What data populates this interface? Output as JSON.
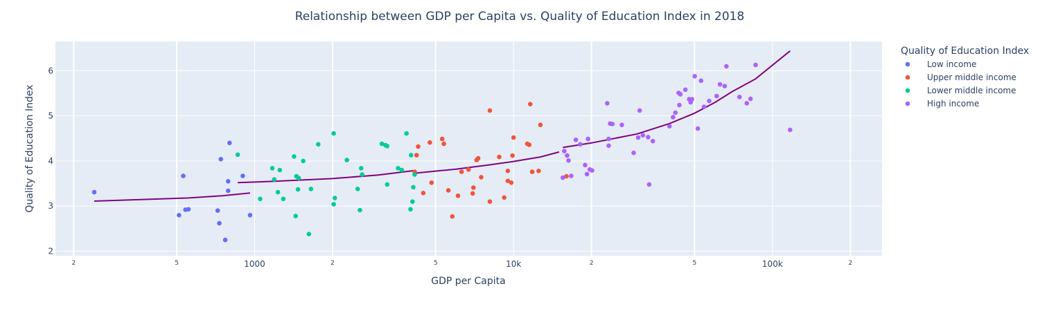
{
  "chart_data": {
    "type": "scatter",
    "title": "Relationship between GDP per Capita vs. Quality of Education Index in 2018",
    "xlabel": "GDP per Capita",
    "ylabel": "Quality of Education Index",
    "xscale": "log",
    "xlim": [
      170,
      265000
    ],
    "ylim": [
      1.9,
      6.65
    ],
    "grid": true,
    "legend_title": "Quality of Education Index",
    "legend_position": "right",
    "x_ticks_major": [
      {
        "value": 1000,
        "label": "1000"
      },
      {
        "value": 10000,
        "label": "10k"
      },
      {
        "value": 100000,
        "label": "100k"
      }
    ],
    "x_ticks_minor": [
      {
        "value": 200,
        "label": "2"
      },
      {
        "value": 500,
        "label": "5"
      },
      {
        "value": 2000,
        "label": "2"
      },
      {
        "value": 5000,
        "label": "5"
      },
      {
        "value": 20000,
        "label": "2"
      },
      {
        "value": 50000,
        "label": "5"
      },
      {
        "value": 200000,
        "label": "2"
      }
    ],
    "y_ticks": [
      {
        "value": 2,
        "label": "2"
      },
      {
        "value": 3,
        "label": "3"
      },
      {
        "value": 4,
        "label": "4"
      },
      {
        "value": 5,
        "label": "5"
      },
      {
        "value": 6,
        "label": "6"
      }
    ],
    "series": [
      {
        "name": "Low income",
        "color": "#636efa",
        "points": [
          [
            240,
            3.31
          ],
          [
            510,
            2.8
          ],
          [
            530,
            3.67
          ],
          [
            540,
            2.92
          ],
          [
            555,
            2.93
          ],
          [
            720,
            2.9
          ],
          [
            730,
            2.62
          ],
          [
            740,
            4.04
          ],
          [
            770,
            2.25
          ],
          [
            790,
            3.55
          ],
          [
            790,
            3.34
          ],
          [
            800,
            4.4
          ],
          [
            900,
            3.67
          ],
          [
            960,
            2.8
          ]
        ]
      },
      {
        "name": "Upper middle income",
        "color": "#ef553b",
        "points": [
          [
            4150,
            3.76
          ],
          [
            4220,
            4.13
          ],
          [
            4280,
            4.32
          ],
          [
            4480,
            3.29
          ],
          [
            4750,
            4.41
          ],
          [
            4820,
            3.52
          ],
          [
            5300,
            4.49
          ],
          [
            5380,
            4.38
          ],
          [
            5600,
            3.35
          ],
          [
            5800,
            2.77
          ],
          [
            6100,
            3.23
          ],
          [
            6300,
            3.76
          ],
          [
            6700,
            3.81
          ],
          [
            6950,
            3.28
          ],
          [
            7000,
            3.41
          ],
          [
            7200,
            4.02
          ],
          [
            7300,
            4.06
          ],
          [
            7500,
            3.64
          ],
          [
            8100,
            5.12
          ],
          [
            8100,
            3.1
          ],
          [
            8800,
            4.09
          ],
          [
            9200,
            3.19
          ],
          [
            9500,
            3.78
          ],
          [
            9500,
            3.56
          ],
          [
            9800,
            3.52
          ],
          [
            9900,
            4.12
          ],
          [
            10000,
            4.52
          ],
          [
            11300,
            4.38
          ],
          [
            11500,
            4.36
          ],
          [
            11600,
            5.26
          ],
          [
            11800,
            3.76
          ],
          [
            12500,
            3.78
          ],
          [
            12700,
            4.8
          ],
          [
            16000,
            3.66
          ]
        ]
      },
      {
        "name": "Lower middle income",
        "color": "#00cc96",
        "points": [
          [
            860,
            4.14
          ],
          [
            1050,
            3.16
          ],
          [
            1170,
            3.84
          ],
          [
            1190,
            3.59
          ],
          [
            1230,
            3.31
          ],
          [
            1250,
            3.8
          ],
          [
            1290,
            3.16
          ],
          [
            1420,
            4.1
          ],
          [
            1440,
            2.78
          ],
          [
            1450,
            3.66
          ],
          [
            1470,
            3.37
          ],
          [
            1480,
            3.62
          ],
          [
            1540,
            4.0
          ],
          [
            1620,
            2.38
          ],
          [
            1650,
            3.38
          ],
          [
            1760,
            4.37
          ],
          [
            2020,
            3.04
          ],
          [
            2020,
            4.61
          ],
          [
            2040,
            3.18
          ],
          [
            2270,
            4.02
          ],
          [
            2500,
            3.38
          ],
          [
            2550,
            2.91
          ],
          [
            2580,
            3.84
          ],
          [
            2600,
            3.7
          ],
          [
            3100,
            4.38
          ],
          [
            3200,
            4.35
          ],
          [
            3250,
            4.33
          ],
          [
            3250,
            3.48
          ],
          [
            3580,
            3.84
          ],
          [
            3700,
            3.8
          ],
          [
            3860,
            4.61
          ],
          [
            4000,
            2.93
          ],
          [
            4020,
            4.13
          ],
          [
            4070,
            3.1
          ],
          [
            4100,
            3.42
          ],
          [
            4150,
            3.7
          ]
        ]
      },
      {
        "name": "High income",
        "color": "#ab63fa",
        "points": [
          [
            15500,
            3.63
          ],
          [
            15700,
            4.22
          ],
          [
            16100,
            4.12
          ],
          [
            16300,
            4.01
          ],
          [
            16700,
            3.67
          ],
          [
            17400,
            4.47
          ],
          [
            18100,
            4.37
          ],
          [
            18900,
            3.91
          ],
          [
            19200,
            3.71
          ],
          [
            19400,
            4.49
          ],
          [
            19700,
            3.81
          ],
          [
            20100,
            3.79
          ],
          [
            23000,
            5.28
          ],
          [
            23300,
            4.49
          ],
          [
            23300,
            4.34
          ],
          [
            23600,
            4.83
          ],
          [
            24100,
            4.82
          ],
          [
            26200,
            4.8
          ],
          [
            29100,
            4.18
          ],
          [
            30300,
            4.52
          ],
          [
            30700,
            5.12
          ],
          [
            31600,
            4.57
          ],
          [
            33100,
            4.53
          ],
          [
            33400,
            3.48
          ],
          [
            34500,
            4.44
          ],
          [
            40000,
            4.77
          ],
          [
            41300,
            4.97
          ],
          [
            42200,
            5.07
          ],
          [
            43400,
            5.51
          ],
          [
            43700,
            5.24
          ],
          [
            44100,
            5.48
          ],
          [
            46100,
            5.58
          ],
          [
            47700,
            5.37
          ],
          [
            48300,
            5.3
          ],
          [
            48900,
            5.37
          ],
          [
            50100,
            5.88
          ],
          [
            51500,
            4.72
          ],
          [
            53000,
            5.78
          ],
          [
            54400,
            5.2
          ],
          [
            57000,
            5.33
          ],
          [
            60900,
            5.44
          ],
          [
            62700,
            5.7
          ],
          [
            65400,
            5.66
          ],
          [
            66400,
            6.1
          ],
          [
            74600,
            5.42
          ],
          [
            79600,
            5.28
          ],
          [
            82300,
            5.38
          ],
          [
            86100,
            6.13
          ],
          [
            117000,
            4.69
          ]
        ]
      }
    ],
    "trendlines": [
      {
        "color": "#800080",
        "points": [
          [
            240,
            3.11
          ],
          [
            550,
            3.18
          ],
          [
            750,
            3.23
          ],
          [
            960,
            3.29
          ]
        ]
      },
      {
        "color": "#800080",
        "points": [
          [
            860,
            3.52
          ],
          [
            1200,
            3.55
          ],
          [
            2000,
            3.61
          ],
          [
            3000,
            3.69
          ],
          [
            4150,
            3.79
          ]
        ]
      },
      {
        "color": "#800080",
        "points": [
          [
            4150,
            3.73
          ],
          [
            6000,
            3.82
          ],
          [
            8000,
            3.91
          ],
          [
            10000,
            3.99
          ],
          [
            12700,
            4.09
          ],
          [
            15000,
            4.2
          ]
        ]
      },
      {
        "color": "#800080",
        "points": [
          [
            15500,
            4.3
          ],
          [
            20000,
            4.4
          ],
          [
            30000,
            4.6
          ],
          [
            40000,
            4.83
          ],
          [
            50000,
            5.06
          ],
          [
            60000,
            5.3
          ],
          [
            70000,
            5.54
          ],
          [
            86000,
            5.82
          ],
          [
            117000,
            6.44
          ]
        ]
      }
    ]
  }
}
